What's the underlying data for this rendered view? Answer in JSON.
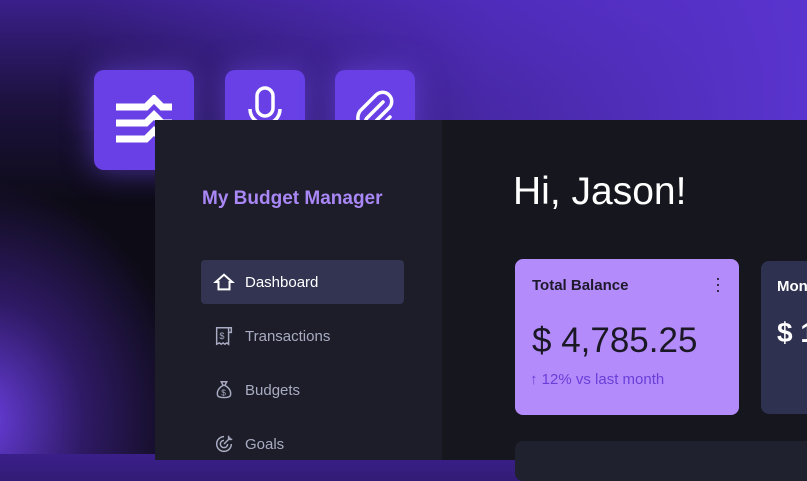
{
  "app": {
    "title": "My Budget Manager",
    "greeting": "Hi, Jason!"
  },
  "toolbar": [
    {
      "icon": "layers-logo-icon"
    },
    {
      "icon": "microphone-icon"
    },
    {
      "icon": "paperclip-icon"
    }
  ],
  "sidebar": {
    "items": [
      {
        "label": "Dashboard",
        "icon": "home-icon",
        "active": true
      },
      {
        "label": "Transactions",
        "icon": "receipt-icon"
      },
      {
        "label": "Budgets",
        "icon": "money-bag-icon"
      },
      {
        "label": "Goals",
        "icon": "target-icon"
      }
    ]
  },
  "cards": [
    {
      "label": "Total Balance",
      "amount": "$ 4,785.25",
      "change": "12% vs last month",
      "change_icon": "arrow-up-icon",
      "color": "#b38bfa"
    },
    {
      "label": "Mon",
      "amount": "$ 1"
    }
  ],
  "colors": {
    "accent": "#6840e6",
    "sidebar": "#1c1d28",
    "active": "#323452"
  }
}
